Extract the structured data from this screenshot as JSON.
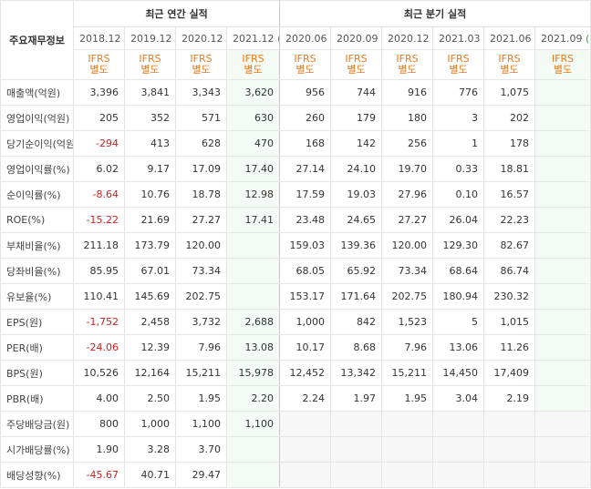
{
  "header": {
    "row_label": "주요재무정보",
    "annual_title": "최근 연간 실적",
    "quarter_title": "최근 분기 실적",
    "ifrs_line1": "IFRS",
    "ifrs_line2": "별도",
    "est_suffix": "(E)",
    "periods": [
      "2018.12",
      "2019.12",
      "2020.12",
      "2021.12",
      "2020.06",
      "2020.09",
      "2020.12",
      "2021.03",
      "2021.06",
      "2021.09"
    ]
  },
  "rows": [
    {
      "label": "매출액(억원)",
      "values": [
        "3,396",
        "3,841",
        "3,343",
        "3,620",
        "956",
        "744",
        "916",
        "776",
        "1,075",
        ""
      ]
    },
    {
      "label": "영업이익(억원)",
      "values": [
        "205",
        "352",
        "571",
        "630",
        "260",
        "179",
        "180",
        "3",
        "202",
        ""
      ]
    },
    {
      "label": "당기순이익(억원)",
      "values": [
        "-294",
        "413",
        "628",
        "470",
        "168",
        "142",
        "256",
        "1",
        "178",
        ""
      ]
    },
    {
      "label": "영업이익률(%)",
      "values": [
        "6.02",
        "9.17",
        "17.09",
        "17.40",
        "27.14",
        "24.10",
        "19.70",
        "0.33",
        "18.81",
        ""
      ]
    },
    {
      "label": "순이익률(%)",
      "values": [
        "-8.64",
        "10.76",
        "18.78",
        "12.98",
        "17.59",
        "19.03",
        "27.96",
        "0.10",
        "16.57",
        ""
      ]
    },
    {
      "label": "ROE(%)",
      "values": [
        "-15.22",
        "21.69",
        "27.27",
        "17.41",
        "23.48",
        "24.65",
        "27.27",
        "26.04",
        "22.23",
        ""
      ]
    },
    {
      "label": "부채비율(%)",
      "values": [
        "211.18",
        "173.79",
        "120.00",
        "",
        "159.03",
        "139.36",
        "120.00",
        "129.30",
        "82.67",
        ""
      ]
    },
    {
      "label": "당좌비율(%)",
      "values": [
        "85.95",
        "67.01",
        "73.34",
        "",
        "68.05",
        "65.92",
        "73.34",
        "68.64",
        "86.74",
        ""
      ]
    },
    {
      "label": "유보율(%)",
      "values": [
        "110.41",
        "145.69",
        "202.75",
        "",
        "153.17",
        "171.64",
        "202.75",
        "180.94",
        "230.32",
        ""
      ]
    },
    {
      "label": "EPS(원)",
      "values": [
        "-1,752",
        "2,458",
        "3,732",
        "2,688",
        "1,000",
        "842",
        "1,523",
        "5",
        "1,015",
        ""
      ]
    },
    {
      "label": "PER(배)",
      "values": [
        "-24.06",
        "12.39",
        "7.96",
        "13.08",
        "10.17",
        "8.68",
        "7.96",
        "13.06",
        "11.26",
        ""
      ]
    },
    {
      "label": "BPS(원)",
      "values": [
        "10,526",
        "12,164",
        "15,211",
        "15,978",
        "12,452",
        "13,342",
        "15,211",
        "14,450",
        "17,409",
        ""
      ]
    },
    {
      "label": "PBR(배)",
      "values": [
        "4.00",
        "2.50",
        "1.95",
        "2.20",
        "2.24",
        "1.97",
        "1.95",
        "3.04",
        "2.19",
        ""
      ]
    },
    {
      "label": "주당배당금(원)",
      "values": [
        "800",
        "1,000",
        "1,100",
        "1,100",
        "",
        "",
        "",
        "",
        "",
        ""
      ]
    },
    {
      "label": "시가배당률(%)",
      "values": [
        "1.90",
        "3.28",
        "3.70",
        "",
        "",
        "",
        "",
        "",
        "",
        ""
      ]
    },
    {
      "label": "배당성향(%)",
      "values": [
        "-45.67",
        "40.71",
        "29.47",
        "",
        "",
        "",
        "",
        "",
        "",
        ""
      ]
    }
  ]
}
